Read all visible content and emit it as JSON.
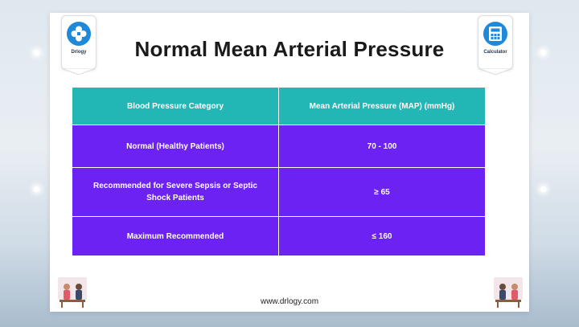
{
  "header": {
    "title": "Normal Mean Arterial Pressure",
    "left_badge": {
      "label": "Drlogy",
      "icon": "drlogy-logo-icon"
    },
    "right_badge": {
      "label": "Calculator",
      "icon": "calculator-icon"
    }
  },
  "table": {
    "columns": [
      "Blood Pressure Category",
      "Mean Arterial Pressure (MAP) (mmHg)"
    ],
    "rows": [
      [
        "Normal (Healthy Patients)",
        "70 - 100"
      ],
      [
        "Recommended for Severe Sepsis or Septic Shock Patients",
        "≥ 65"
      ],
      [
        "Maximum Recommended",
        "≤ 160"
      ]
    ]
  },
  "footer": {
    "url": "www.drlogy.com"
  },
  "colors": {
    "header_teal": "#22b7b5",
    "row_purple": "#6b22f2",
    "logo_blue": "#1f88d8"
  }
}
